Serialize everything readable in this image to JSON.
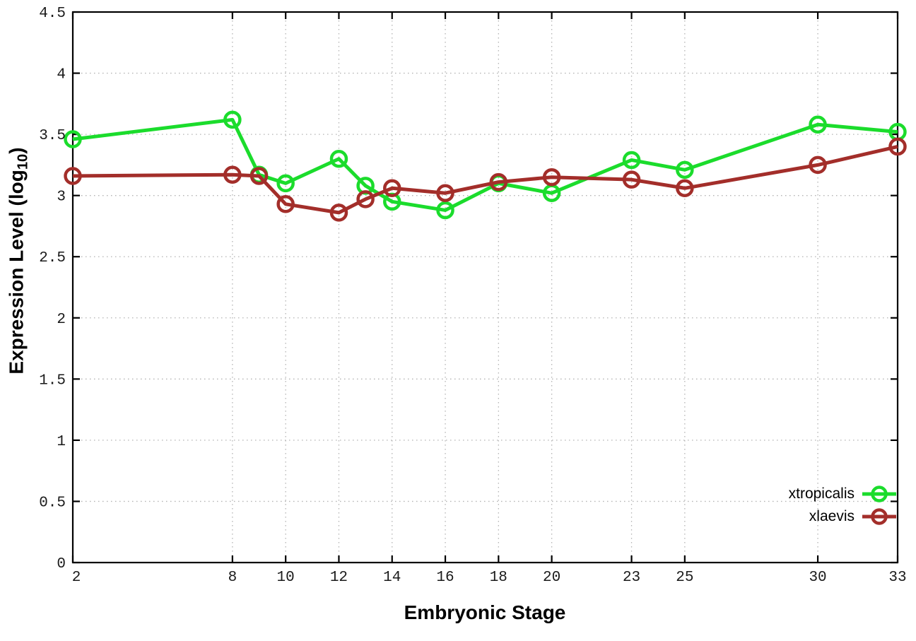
{
  "chart_data": {
    "type": "line",
    "title": "",
    "xlabel": "Embryonic Stage",
    "ylabel": "Expression Level (log10)",
    "ylabel_parts": {
      "main": "Expression Level (log",
      "sub": "10",
      "close": ")"
    },
    "xlim": [
      2,
      33
    ],
    "ylim": [
      0,
      4.5
    ],
    "grid": true,
    "legend_position": "bottom-right",
    "xtick_values": [
      2,
      8,
      10,
      12,
      14,
      16,
      18,
      20,
      23,
      25,
      30,
      33
    ],
    "xtick_labels": [
      "2",
      "8",
      "10",
      "12",
      "14",
      "16",
      "18",
      "20",
      "23",
      "25",
      "30",
      "33"
    ],
    "ytick_values": [
      0,
      0.5,
      1,
      1.5,
      2,
      2.5,
      3,
      3.5,
      4,
      4.5
    ],
    "ytick_labels": [
      "0",
      "0.5",
      "1",
      "1.5",
      "2",
      "2.5",
      "3",
      "3.5",
      "4",
      "4.5"
    ],
    "x": [
      2,
      8,
      9,
      10,
      12,
      13,
      14,
      16,
      18,
      20,
      23,
      25,
      30,
      33
    ],
    "series": [
      {
        "name": "xtropicalis",
        "color": "#1bdc2c",
        "values": [
          3.46,
          3.62,
          3.17,
          3.1,
          3.3,
          3.08,
          2.95,
          2.88,
          3.1,
          3.02,
          3.29,
          3.21,
          3.58,
          3.52
        ]
      },
      {
        "name": "xlaevis",
        "color": "#a32e2a",
        "values": [
          3.16,
          3.17,
          3.16,
          2.93,
          2.86,
          2.97,
          3.06,
          3.02,
          3.11,
          3.15,
          3.13,
          3.06,
          3.25,
          3.4
        ]
      }
    ],
    "colors": {
      "grid": "#b3b3b3",
      "border": "#000000",
      "tick_text": "#1a1a1a"
    }
  }
}
